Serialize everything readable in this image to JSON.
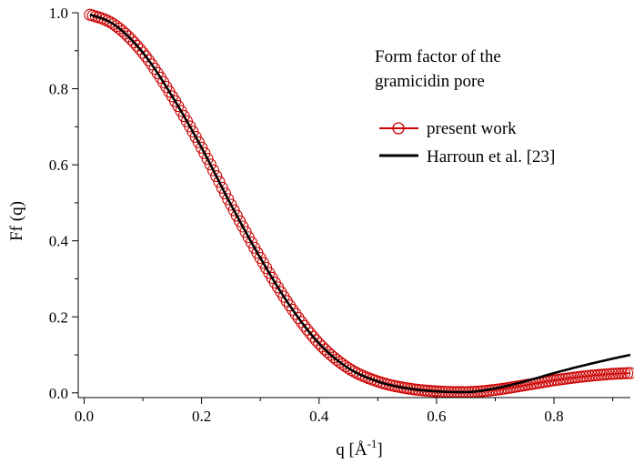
{
  "chart_data": {
    "type": "line",
    "title": "",
    "annotation_lines": [
      "Form factor of the",
      "gramicidin pore"
    ],
    "xlabel": "q [Å",
    "xlabel_superscript": "-1",
    "xlabel_suffix": "]",
    "ylabel": "Ff (q)",
    "xlim": [
      -0.01,
      0.93
    ],
    "ylim": [
      -0.01,
      1.0
    ],
    "x_ticks": [
      0.0,
      0.2,
      0.4,
      0.6,
      0.8
    ],
    "x_tick_labels": [
      "0.0",
      "0.2",
      "0.4",
      "0.6",
      "0.8"
    ],
    "y_ticks": [
      0.0,
      0.2,
      0.4,
      0.6,
      0.8,
      1.0
    ],
    "y_tick_labels": [
      "0.0",
      "0.2",
      "0.4",
      "0.6",
      "0.8",
      "1.0"
    ],
    "grid": false,
    "legend_position": "top-right",
    "series": [
      {
        "name": "present work",
        "color": "#cc0000",
        "marker": "open-circle",
        "x": [
          0.0,
          0.05,
          0.1,
          0.15,
          0.2,
          0.25,
          0.3,
          0.35,
          0.4,
          0.45,
          0.5,
          0.55,
          0.6,
          0.65,
          0.7,
          0.75,
          0.8,
          0.85,
          0.9,
          0.93
        ],
        "y": [
          1.0,
          0.97,
          0.895,
          0.78,
          0.645,
          0.495,
          0.355,
          0.23,
          0.13,
          0.065,
          0.03,
          0.012,
          0.004,
          0.002,
          0.008,
          0.02,
          0.033,
          0.043,
          0.05,
          0.052
        ]
      },
      {
        "name": "Harroun et al. [23]",
        "color": "#000000",
        "marker": "none",
        "x": [
          0.0,
          0.05,
          0.1,
          0.15,
          0.2,
          0.25,
          0.3,
          0.35,
          0.4,
          0.45,
          0.5,
          0.55,
          0.6,
          0.65,
          0.7,
          0.75,
          0.8,
          0.85,
          0.9,
          0.93
        ],
        "y": [
          1.0,
          0.97,
          0.895,
          0.78,
          0.645,
          0.495,
          0.355,
          0.23,
          0.13,
          0.065,
          0.03,
          0.012,
          0.004,
          0.002,
          0.012,
          0.03,
          0.052,
          0.072,
          0.09,
          0.1
        ]
      }
    ]
  }
}
